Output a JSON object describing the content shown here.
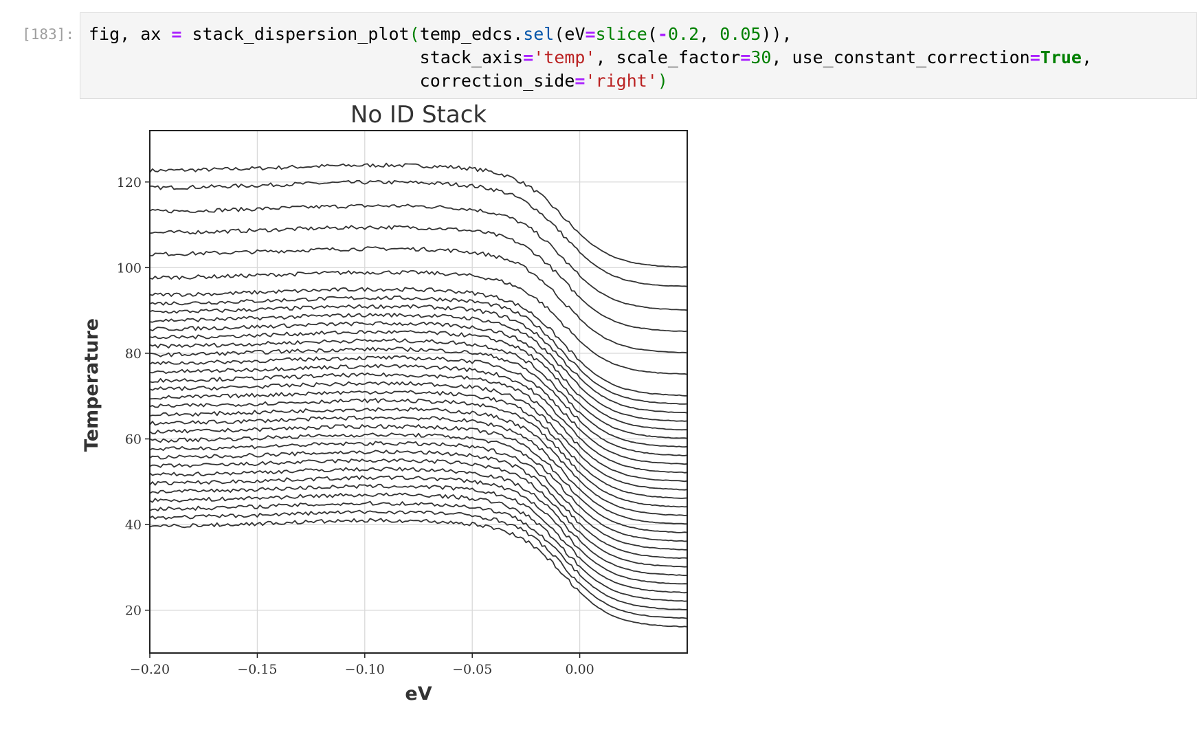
{
  "cell": {
    "prompt": "[183]:",
    "code": {
      "line1": [
        {
          "t": "fig, ax ",
          "c": ""
        },
        {
          "t": "=",
          "c": "op"
        },
        {
          "t": " stack_dispersion_plot",
          "c": ""
        },
        {
          "t": "(",
          "c": "num"
        },
        {
          "t": "temp_edcs.",
          "c": ""
        },
        {
          "t": "sel",
          "c": "fn"
        },
        {
          "t": "(eV",
          "c": ""
        },
        {
          "t": "=",
          "c": "op"
        },
        {
          "t": "slice",
          "c": "num"
        },
        {
          "t": "(",
          "c": ""
        },
        {
          "t": "-",
          "c": "op"
        },
        {
          "t": "0.2",
          "c": "num"
        },
        {
          "t": ", ",
          "c": ""
        },
        {
          "t": "0.05",
          "c": "num"
        },
        {
          "t": ")),",
          "c": ""
        }
      ],
      "line2": [
        {
          "t": "                                stack_axis",
          "c": ""
        },
        {
          "t": "=",
          "c": "op"
        },
        {
          "t": "'temp'",
          "c": "str"
        },
        {
          "t": ", scale_factor",
          "c": ""
        },
        {
          "t": "=",
          "c": "op"
        },
        {
          "t": "30",
          "c": "num"
        },
        {
          "t": ", use_constant_correction",
          "c": ""
        },
        {
          "t": "=",
          "c": "op"
        },
        {
          "t": "True",
          "c": "kw"
        },
        {
          "t": ",",
          "c": ""
        }
      ],
      "line3": [
        {
          "t": "                                correction_side",
          "c": ""
        },
        {
          "t": "=",
          "c": "op"
        },
        {
          "t": "'right'",
          "c": "str"
        },
        {
          "t": ")",
          "c": "num"
        }
      ]
    }
  },
  "chart_data": {
    "type": "line",
    "title": "No ID Stack",
    "xlabel": "eV",
    "ylabel": "Temperature",
    "xlim": [
      -0.2,
      0.05
    ],
    "ylim": [
      10,
      132
    ],
    "xticks": [
      -0.2,
      -0.15,
      -0.1,
      -0.05,
      0.0
    ],
    "xtick_labels": [
      "−0.20",
      "−0.15",
      "−0.10",
      "−0.05",
      "0.00"
    ],
    "yticks": [
      20,
      40,
      60,
      80,
      100,
      120
    ],
    "ytick_labels": [
      "20",
      "40",
      "60",
      "80",
      "100",
      "120"
    ],
    "grid": true,
    "line_color": "#333333",
    "fermi_edge_center": -0.007,
    "fermi_edge_width": 0.011,
    "series": [
      {
        "left": 123,
        "right": 100
      },
      {
        "left": 119,
        "right": 95.5
      },
      {
        "left": 113.5,
        "right": 90
      },
      {
        "left": 108.5,
        "right": 85
      },
      {
        "left": 103.5,
        "right": 80
      },
      {
        "left": 98,
        "right": 75
      },
      {
        "left": 94,
        "right": 70
      },
      {
        "left": 92,
        "right": 68
      },
      {
        "left": 90,
        "right": 66
      },
      {
        "left": 88,
        "right": 64
      },
      {
        "left": 86,
        "right": 62
      },
      {
        "left": 84,
        "right": 60
      },
      {
        "left": 82,
        "right": 58
      },
      {
        "left": 80,
        "right": 56
      },
      {
        "left": 78,
        "right": 54
      },
      {
        "left": 76,
        "right": 52
      },
      {
        "left": 74,
        "right": 50
      },
      {
        "left": 72,
        "right": 48
      },
      {
        "left": 70,
        "right": 46
      },
      {
        "left": 68,
        "right": 44
      },
      {
        "left": 66,
        "right": 42
      },
      {
        "left": 64,
        "right": 40
      },
      {
        "left": 62,
        "right": 38
      },
      {
        "left": 60,
        "right": 36
      },
      {
        "left": 58,
        "right": 34
      },
      {
        "left": 56,
        "right": 32
      },
      {
        "left": 54,
        "right": 30
      },
      {
        "left": 52,
        "right": 28
      },
      {
        "left": 50,
        "right": 26
      },
      {
        "left": 48,
        "right": 24
      },
      {
        "left": 46,
        "right": 22
      },
      {
        "left": 44,
        "right": 20
      },
      {
        "left": 42,
        "right": 18
      },
      {
        "left": 40,
        "right": 16
      }
    ]
  }
}
